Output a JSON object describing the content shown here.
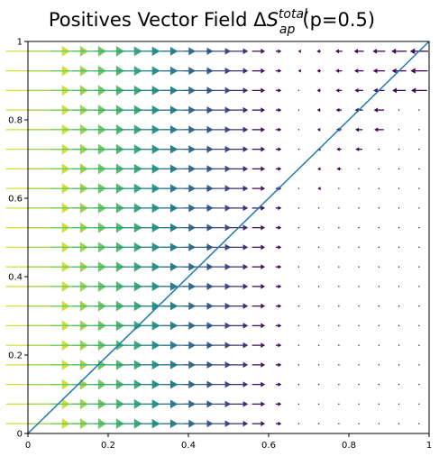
{
  "chart_data": {
    "type": "quiver",
    "title": {
      "prefix": "Positives Vector Field ",
      "delta": "Δ",
      "symbol": "S",
      "superscript": "total",
      "subscript": "ap",
      "suffix": "(p=0.5)"
    },
    "xlim": [
      0,
      1
    ],
    "ylim": [
      0,
      1
    ],
    "xticks": [
      0,
      0.2,
      0.4,
      0.6,
      0.8,
      1
    ],
    "yticks": [
      0,
      0.2,
      0.4,
      0.6,
      0.8,
      1
    ],
    "xtick_labels": [
      "0",
      "0.2",
      "0.4",
      "0.6",
      "0.8",
      "1"
    ],
    "ytick_labels": [
      "0",
      "0.2",
      "0.4",
      "0.6",
      "0.8",
      "1"
    ],
    "grid": false,
    "colormap": "viridis",
    "field": {
      "x_grid": [
        0.025,
        0.075,
        0.125,
        0.175,
        0.225,
        0.275,
        0.325,
        0.375,
        0.425,
        0.475,
        0.525,
        0.575,
        0.625,
        0.675,
        0.725,
        0.775,
        0.825,
        0.875,
        0.925,
        0.975
      ],
      "y_grid": [
        0.025,
        0.075,
        0.125,
        0.175,
        0.225,
        0.275,
        0.325,
        0.375,
        0.425,
        0.475,
        0.525,
        0.575,
        0.625,
        0.675,
        0.725,
        0.775,
        0.825,
        0.875,
        0.925,
        0.975
      ],
      "direction": "horizontal",
      "peak_x": 0.1,
      "zero_x": 0.65
    },
    "reference_line": {
      "x": [
        0,
        1
      ],
      "y": [
        0,
        1
      ],
      "color": "#1f77b4"
    }
  }
}
